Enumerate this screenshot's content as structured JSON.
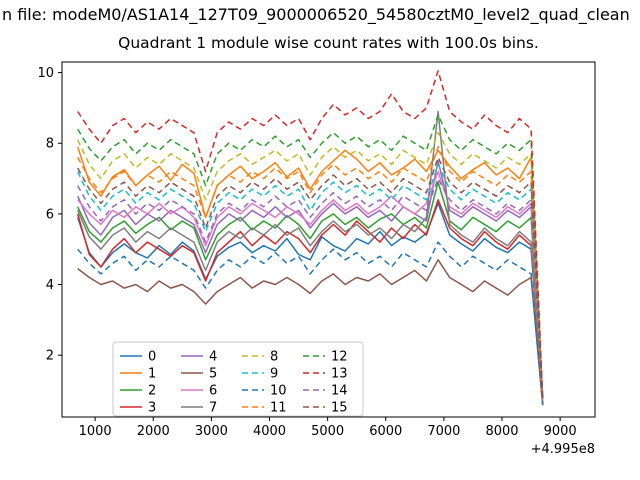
{
  "titles": {
    "figure_title_visible": "n file: modeM0/AS1A14_127T09_9000006520_54580cztM0_level2_quad_clean",
    "axes_title": "Quadrant 1 module wise count rates with 100.0s bins."
  },
  "chart_data": {
    "type": "line",
    "title": "Quadrant 1 module wise count rates with 100.0s bins.",
    "xlabel": "",
    "ylabel": "",
    "x_offset_text": "+4.995e8",
    "x_axis_note": "x tick values are relative to offset +4.995e8 seconds",
    "xlim": [
      430,
      9600
    ],
    "ylim": [
      0.25,
      10.3
    ],
    "xticks": [
      1000,
      2000,
      3000,
      4000,
      5000,
      6000,
      7000,
      8000,
      9000
    ],
    "yticks": [
      2,
      4,
      6,
      8,
      10
    ],
    "grid": false,
    "legend": {
      "position": "lower-left-inside",
      "ncol": 4,
      "labels": [
        "0",
        "1",
        "2",
        "3",
        "4",
        "5",
        "6",
        "7",
        "8",
        "9",
        "10",
        "11",
        "12",
        "13",
        "14",
        "15"
      ]
    },
    "x": [
      700,
      900,
      1100,
      1300,
      1500,
      1700,
      1900,
      2100,
      2300,
      2500,
      2700,
      2900,
      3100,
      3300,
      3500,
      3700,
      3900,
      4100,
      4300,
      4500,
      4700,
      4900,
      5100,
      5300,
      5500,
      5700,
      5900,
      6100,
      6300,
      6500,
      6700,
      6900,
      7100,
      7300,
      7500,
      7700,
      7900,
      8100,
      8300,
      8500,
      8700
    ],
    "series": [
      {
        "name": "0",
        "color": "#1f77b4",
        "linestyle": "solid",
        "values": [
          5.9,
          4.9,
          4.5,
          4.9,
          5.15,
          4.9,
          4.75,
          5.1,
          4.85,
          5.2,
          4.95,
          4.15,
          4.8,
          5.05,
          5.2,
          4.9,
          5.1,
          4.95,
          5.3,
          4.85,
          4.7,
          5.35,
          5.1,
          4.95,
          5.3,
          5.15,
          5.5,
          5.1,
          5.35,
          5.2,
          5.45,
          6.3,
          5.4,
          5.15,
          4.95,
          5.3,
          5.05,
          4.9,
          5.2,
          5.0,
          0.65
        ]
      },
      {
        "name": "1",
        "color": "#ff7f0e",
        "linestyle": "solid",
        "values": [
          7.9,
          6.9,
          6.5,
          7.05,
          7.25,
          6.8,
          7.1,
          7.35,
          6.95,
          7.4,
          7.15,
          5.9,
          6.8,
          7.1,
          7.35,
          7.0,
          7.2,
          7.45,
          7.05,
          7.3,
          6.7,
          7.2,
          7.5,
          7.8,
          7.55,
          7.2,
          7.45,
          7.1,
          7.3,
          7.55,
          7.2,
          7.8,
          7.35,
          7.0,
          7.25,
          7.45,
          7.1,
          7.3,
          7.0,
          7.6,
          0.7
        ]
      },
      {
        "name": "2",
        "color": "#2ca02c",
        "linestyle": "solid",
        "values": [
          6.2,
          5.5,
          5.2,
          5.6,
          5.8,
          5.45,
          5.7,
          5.9,
          5.55,
          5.8,
          5.6,
          4.7,
          5.4,
          5.7,
          5.9,
          5.55,
          5.8,
          5.6,
          5.95,
          5.7,
          5.3,
          5.8,
          6.0,
          5.7,
          5.9,
          5.6,
          5.85,
          6.0,
          5.7,
          5.9,
          5.6,
          6.9,
          5.8,
          5.55,
          5.9,
          5.7,
          5.5,
          5.8,
          5.6,
          5.9,
          0.68
        ]
      },
      {
        "name": "3",
        "color": "#d62728",
        "linestyle": "solid",
        "values": [
          6.0,
          4.85,
          4.5,
          5.0,
          5.3,
          4.9,
          5.2,
          5.0,
          4.8,
          5.1,
          4.9,
          4.1,
          4.9,
          5.2,
          5.5,
          5.1,
          5.4,
          5.15,
          5.5,
          5.3,
          4.9,
          5.4,
          5.7,
          5.4,
          5.8,
          5.5,
          5.2,
          5.6,
          5.3,
          5.7,
          5.4,
          6.4,
          5.6,
          5.3,
          5.1,
          5.5,
          5.2,
          5.0,
          5.4,
          5.1,
          0.62
        ]
      },
      {
        "name": "4",
        "color": "#9467bd",
        "linestyle": "solid",
        "values": [
          6.5,
          5.75,
          5.4,
          5.9,
          6.1,
          5.7,
          6.0,
          5.8,
          6.1,
          5.9,
          5.7,
          4.9,
          5.7,
          6.0,
          5.8,
          6.1,
          5.9,
          6.2,
          5.9,
          6.1,
          5.6,
          6.0,
          6.3,
          6.0,
          6.2,
          5.9,
          6.1,
          5.8,
          6.2,
          6.0,
          5.8,
          7.5,
          6.1,
          5.9,
          6.2,
          6.0,
          5.8,
          6.1,
          5.9,
          6.2,
          0.7
        ]
      },
      {
        "name": "5",
        "color": "#8c564b",
        "linestyle": "solid",
        "values": [
          4.45,
          4.2,
          4.0,
          4.1,
          3.9,
          4.0,
          3.8,
          4.1,
          3.9,
          4.0,
          3.8,
          3.45,
          3.8,
          4.0,
          4.2,
          3.9,
          4.1,
          4.0,
          4.2,
          4.0,
          3.75,
          4.1,
          4.3,
          4.0,
          4.2,
          4.1,
          4.3,
          4.0,
          4.2,
          4.4,
          4.1,
          4.7,
          4.2,
          4.0,
          3.8,
          4.1,
          3.9,
          3.7,
          4.0,
          4.2,
          0.58
        ]
      },
      {
        "name": "6",
        "color": "#e377c2",
        "linestyle": "solid",
        "values": [
          6.4,
          6.0,
          5.7,
          6.1,
          5.9,
          6.2,
          6.0,
          6.3,
          6.0,
          6.2,
          5.9,
          5.1,
          5.9,
          6.2,
          6.0,
          6.3,
          6.1,
          5.9,
          6.2,
          6.0,
          5.7,
          6.1,
          6.4,
          6.1,
          6.3,
          6.0,
          6.2,
          6.5,
          6.2,
          6.0,
          6.3,
          7.2,
          6.2,
          6.0,
          6.3,
          6.1,
          5.9,
          6.2,
          6.0,
          6.3,
          0.72
        ]
      },
      {
        "name": "7",
        "color": "#7f7f7f",
        "linestyle": "solid",
        "values": [
          6.1,
          5.35,
          5.0,
          5.4,
          5.6,
          5.2,
          5.5,
          5.3,
          5.6,
          5.4,
          5.2,
          4.4,
          5.2,
          5.5,
          5.3,
          5.6,
          5.4,
          5.7,
          5.4,
          5.6,
          5.1,
          5.5,
          5.8,
          5.5,
          5.7,
          5.4,
          5.6,
          5.3,
          5.7,
          5.5,
          5.9,
          8.9,
          5.7,
          5.4,
          5.2,
          5.6,
          5.3,
          5.1,
          5.5,
          5.2,
          0.66
        ]
      },
      {
        "name": "8",
        "color": "#bcbd22",
        "linestyle": "dashed",
        "values": [
          8.1,
          7.4,
          7.0,
          7.5,
          7.7,
          7.3,
          7.6,
          7.4,
          7.7,
          7.5,
          7.3,
          6.4,
          7.2,
          7.5,
          7.7,
          7.4,
          7.6,
          7.8,
          7.5,
          7.7,
          7.1,
          7.6,
          7.9,
          7.6,
          7.8,
          7.5,
          7.7,
          7.4,
          7.8,
          7.6,
          7.4,
          8.3,
          7.7,
          7.4,
          7.7,
          7.5,
          7.3,
          7.6,
          7.4,
          7.7,
          0.75
        ]
      },
      {
        "name": "9",
        "color": "#17becf",
        "linestyle": "dashed",
        "values": [
          7.2,
          6.5,
          6.1,
          6.5,
          6.7,
          6.3,
          6.6,
          6.4,
          6.7,
          6.5,
          6.3,
          5.5,
          6.3,
          6.6,
          6.4,
          6.7,
          6.5,
          6.8,
          6.5,
          6.7,
          6.1,
          6.6,
          6.9,
          6.6,
          6.8,
          6.5,
          6.7,
          6.4,
          6.8,
          6.6,
          6.4,
          7.4,
          6.7,
          6.4,
          6.7,
          6.5,
          6.3,
          6.6,
          6.4,
          6.7,
          0.7
        ]
      },
      {
        "name": "10",
        "color": "#1f77b4",
        "linestyle": "dashed",
        "values": [
          5.0,
          4.6,
          4.3,
          4.6,
          4.8,
          4.4,
          4.7,
          4.5,
          4.8,
          4.6,
          4.4,
          3.9,
          4.4,
          4.7,
          4.5,
          4.8,
          4.6,
          4.9,
          4.6,
          4.8,
          4.3,
          4.7,
          5.0,
          4.7,
          4.9,
          4.6,
          4.8,
          4.5,
          4.9,
          4.7,
          4.5,
          5.2,
          4.8,
          4.5,
          4.8,
          4.6,
          4.4,
          4.7,
          4.5,
          4.3,
          0.6
        ]
      },
      {
        "name": "11",
        "color": "#ff7f0e",
        "linestyle": "dashed",
        "values": [
          7.6,
          7.0,
          6.6,
          7.0,
          7.2,
          6.8,
          7.1,
          6.9,
          7.2,
          7.0,
          6.8,
          5.9,
          6.8,
          7.1,
          6.9,
          7.2,
          7.0,
          7.3,
          7.0,
          7.2,
          6.6,
          7.1,
          7.4,
          7.1,
          7.3,
          7.0,
          7.2,
          6.9,
          7.3,
          7.1,
          6.9,
          7.9,
          7.2,
          6.9,
          7.2,
          7.0,
          6.8,
          7.1,
          6.9,
          7.2,
          0.72
        ]
      },
      {
        "name": "12",
        "color": "#2ca02c",
        "linestyle": "dashed",
        "values": [
          8.4,
          7.85,
          7.5,
          7.9,
          8.1,
          7.7,
          8.0,
          7.8,
          8.1,
          7.9,
          7.7,
          6.8,
          7.7,
          8.0,
          7.8,
          8.1,
          7.9,
          8.2,
          7.9,
          8.1,
          7.6,
          8.0,
          8.3,
          8.0,
          8.2,
          7.9,
          8.1,
          7.8,
          8.2,
          8.0,
          7.8,
          8.8,
          8.1,
          7.8,
          8.1,
          7.9,
          7.7,
          8.0,
          7.8,
          8.1,
          0.78
        ]
      },
      {
        "name": "13",
        "color": "#d62728",
        "linestyle": "dashed",
        "values": [
          8.9,
          8.4,
          8.0,
          8.5,
          8.7,
          8.3,
          8.6,
          8.4,
          8.7,
          8.5,
          8.3,
          7.2,
          8.3,
          8.6,
          8.4,
          8.7,
          8.5,
          8.8,
          8.5,
          8.7,
          8.1,
          8.7,
          9.1,
          8.8,
          9.0,
          8.7,
          8.9,
          9.4,
          8.9,
          8.7,
          9.0,
          10.05,
          8.9,
          8.6,
          8.4,
          8.8,
          8.5,
          8.3,
          8.7,
          8.4,
          0.8
        ]
      },
      {
        "name": "14",
        "color": "#9467bd",
        "linestyle": "dashed",
        "values": [
          6.8,
          6.2,
          5.8,
          6.2,
          6.4,
          6.0,
          6.3,
          6.1,
          6.4,
          6.2,
          6.0,
          5.2,
          6.0,
          6.3,
          6.1,
          6.4,
          6.2,
          6.5,
          6.2,
          6.4,
          5.9,
          6.3,
          6.6,
          6.3,
          6.5,
          6.2,
          6.4,
          6.1,
          6.5,
          6.3,
          6.1,
          7.0,
          6.4,
          6.1,
          6.4,
          6.2,
          6.0,
          6.3,
          6.1,
          6.4,
          0.68
        ]
      },
      {
        "name": "15",
        "color": "#8c564b",
        "linestyle": "dashed",
        "values": [
          7.3,
          6.7,
          6.3,
          6.7,
          6.9,
          6.5,
          6.8,
          6.6,
          6.9,
          6.7,
          6.5,
          5.6,
          6.5,
          6.8,
          6.6,
          6.9,
          6.7,
          7.0,
          6.7,
          6.9,
          6.4,
          6.8,
          7.1,
          6.8,
          7.0,
          6.7,
          6.9,
          6.6,
          7.0,
          6.8,
          6.6,
          7.6,
          6.9,
          6.6,
          6.9,
          6.7,
          6.5,
          6.8,
          6.6,
          6.9,
          0.74
        ]
      }
    ]
  }
}
